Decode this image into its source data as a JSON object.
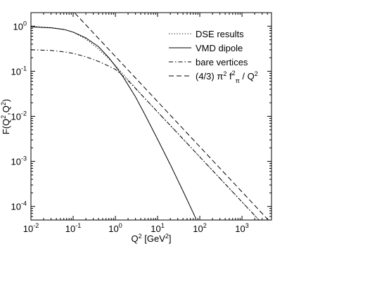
{
  "chart_data": {
    "type": "line",
    "xscale": "log",
    "yscale": "log",
    "xlim": [
      0.01,
      5000
    ],
    "ylim": [
      5e-05,
      2
    ],
    "xlabel": "Q² [GeV²]",
    "ylabel": "F(Q²,Q²)",
    "x_ticks": [
      {
        "value": 0.01,
        "base": "10",
        "exp": "-2"
      },
      {
        "value": 0.1,
        "base": "10",
        "exp": "-1"
      },
      {
        "value": 1,
        "base": "10",
        "exp": "0"
      },
      {
        "value": 10,
        "base": "10",
        "exp": "1"
      },
      {
        "value": 100,
        "base": "10",
        "exp": "2"
      },
      {
        "value": 1000,
        "base": "10",
        "exp": "3"
      }
    ],
    "y_ticks": [
      {
        "value": 0.0001,
        "base": "10",
        "exp": "-4"
      },
      {
        "value": 0.001,
        "base": "10",
        "exp": "-3"
      },
      {
        "value": 0.01,
        "base": "10",
        "exp": "-2"
      },
      {
        "value": 0.1,
        "base": "10",
        "exp": "-1"
      },
      {
        "value": 1,
        "base": "10",
        "exp": "0"
      }
    ],
    "grid": false,
    "legend_position": "top-right",
    "series": [
      {
        "name": "DSE results",
        "style": "dotted",
        "x": [
          0.01,
          0.03,
          0.06,
          0.1,
          0.2,
          0.4,
          0.7,
          1,
          2,
          5,
          10,
          30,
          100,
          300,
          1000,
          3000,
          5000
        ],
        "y": [
          1.0,
          0.93,
          0.85,
          0.74,
          0.52,
          0.31,
          0.19,
          0.135,
          0.065,
          0.025,
          0.0125,
          0.0042,
          0.00126,
          0.00042,
          0.000126,
          4.2e-05,
          2.5e-05
        ]
      },
      {
        "name": "VMD dipole",
        "style": "solid",
        "x": [
          0.01,
          0.03,
          0.06,
          0.1,
          0.2,
          0.4,
          0.7,
          1,
          1.5,
          2,
          3,
          5,
          10,
          20,
          40,
          80
        ],
        "y": [
          0.97,
          0.92,
          0.85,
          0.74,
          0.55,
          0.35,
          0.2,
          0.13,
          0.077,
          0.05,
          0.027,
          0.011,
          0.0031,
          0.00085,
          0.00022,
          5.5e-05
        ]
      },
      {
        "name": "bare vertices",
        "style": "dashdot",
        "x": [
          0.01,
          0.03,
          0.06,
          0.1,
          0.2,
          0.4,
          0.7,
          1,
          2,
          5,
          10,
          30,
          100,
          300,
          1000,
          3000,
          5000
        ],
        "y": [
          0.3,
          0.29,
          0.27,
          0.25,
          0.21,
          0.165,
          0.13,
          0.11,
          0.062,
          0.025,
          0.0125,
          0.0042,
          0.00126,
          0.00042,
          0.000126,
          4.2e-05,
          2.5e-05
        ]
      },
      {
        "name": "(4/3) π² f²π / Q²",
        "style": "dashed",
        "x": [
          0.11,
          5000
        ],
        "y": [
          1.95,
          4.2e-05
        ]
      }
    ],
    "legend": [
      {
        "label": "DSE results",
        "style": "dotted"
      },
      {
        "label": "VMD dipole",
        "style": "solid"
      },
      {
        "label": "bare vertices",
        "style": "dashdot"
      },
      {
        "label": "(4/3) π² f²π / Q²",
        "style": "dashed"
      }
    ]
  }
}
